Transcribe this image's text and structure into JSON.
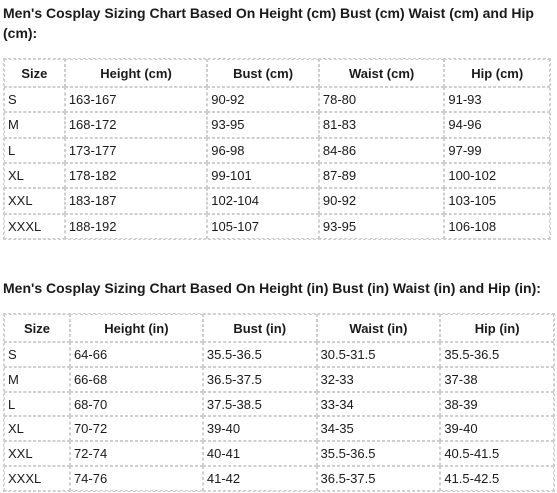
{
  "cm_section": {
    "heading": "Men's Cosplay Sizing Chart Based On Height (cm) Bust (cm) Waist (cm) and Hip (cm):",
    "headers": [
      "Size",
      "Height (cm)",
      "Bust (cm)",
      "Waist (cm)",
      "Hip (cm)"
    ],
    "rows": [
      [
        "S",
        "163-167",
        "90-92",
        "78-80",
        "91-93"
      ],
      [
        "M",
        "168-172",
        "93-95",
        "81-83",
        "94-96"
      ],
      [
        "L",
        "173-177",
        "96-98",
        "84-86",
        "97-99"
      ],
      [
        "XL",
        "178-182",
        "99-101",
        "87-89",
        "100-102"
      ],
      [
        "XXL",
        "183-187",
        "102-104",
        "90-92",
        "103-105"
      ],
      [
        "XXXL",
        "188-192",
        "105-107",
        "93-95",
        "106-108"
      ]
    ]
  },
  "in_section": {
    "heading": "Men's Cosplay Sizing Chart Based On Height (in) Bust (in) Waist (in) and Hip (in):",
    "headers": [
      "Size",
      "Height (in)",
      "Bust (in)",
      "Waist (in)",
      "Hip (in)"
    ],
    "rows": [
      [
        "S",
        "64-66",
        "35.5-36.5",
        "30.5-31.5",
        "35.5-36.5"
      ],
      [
        "M",
        "66-68",
        "36.5-37.5",
        "32-33",
        "37-38"
      ],
      [
        "L",
        "68-70",
        "37.5-38.5",
        "33-34",
        "38-39"
      ],
      [
        "XL",
        "70-72",
        "39-40",
        "34-35",
        "39-40"
      ],
      [
        "XXL",
        "72-74",
        "40-41",
        "35.5-36.5",
        "40.5-41.5"
      ],
      [
        "XXXL",
        "74-76",
        "41-42",
        "36.5-37.5",
        "41.5-42.5"
      ]
    ]
  }
}
